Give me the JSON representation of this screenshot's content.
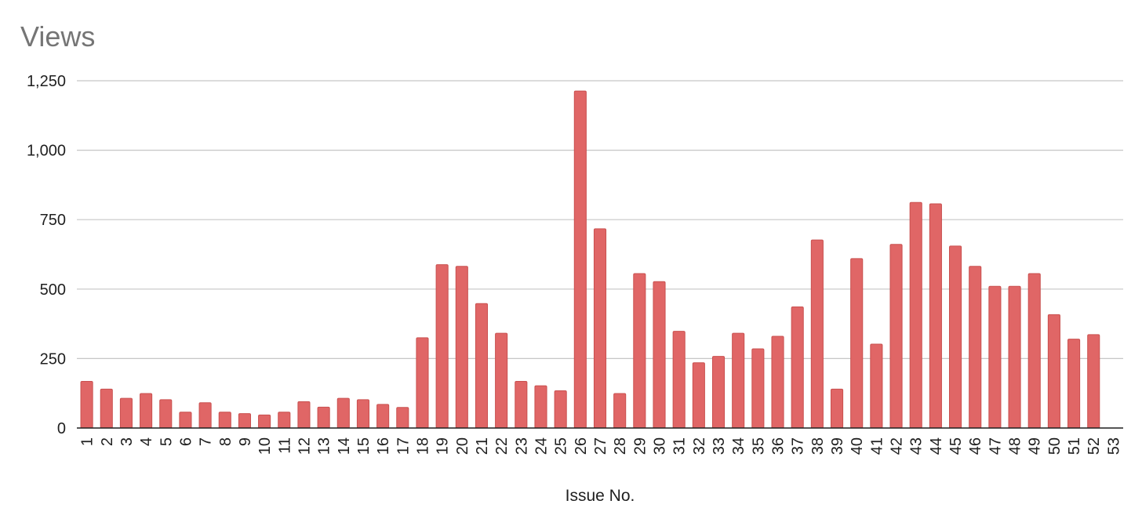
{
  "chart_data": {
    "type": "bar",
    "title": "Views",
    "xlabel": "Issue No.",
    "ylabel": "",
    "ylim": [
      0,
      1250
    ],
    "yticks": [
      0,
      250,
      500,
      750,
      1000,
      1250
    ],
    "ytick_labels": [
      "0",
      "250",
      "500",
      "750",
      "1,000",
      "1,250"
    ],
    "grid": true,
    "legend": "none",
    "bar_color": "#e06666",
    "categories": [
      "1",
      "2",
      "3",
      "4",
      "5",
      "6",
      "7",
      "8",
      "9",
      "10",
      "11",
      "12",
      "13",
      "14",
      "15",
      "16",
      "17",
      "18",
      "19",
      "20",
      "21",
      "22",
      "23",
      "24",
      "25",
      "26",
      "27",
      "28",
      "29",
      "30",
      "31",
      "32",
      "33",
      "34",
      "35",
      "36",
      "37",
      "38",
      "39",
      "40",
      "41",
      "42",
      "43",
      "44",
      "45",
      "46",
      "47",
      "48",
      "49",
      "50",
      "51",
      "52",
      "53"
    ],
    "values": [
      168,
      140,
      107,
      124,
      102,
      57,
      91,
      57,
      52,
      47,
      57,
      95,
      75,
      107,
      102,
      85,
      74,
      325,
      588,
      582,
      448,
      341,
      168,
      152,
      134,
      1213,
      717,
      124,
      556,
      527,
      348,
      235,
      258,
      341,
      285,
      330,
      436,
      677,
      140,
      610,
      302,
      661,
      812,
      807,
      655,
      582,
      510,
      510,
      556,
      408,
      320,
      336,
      0
    ]
  }
}
